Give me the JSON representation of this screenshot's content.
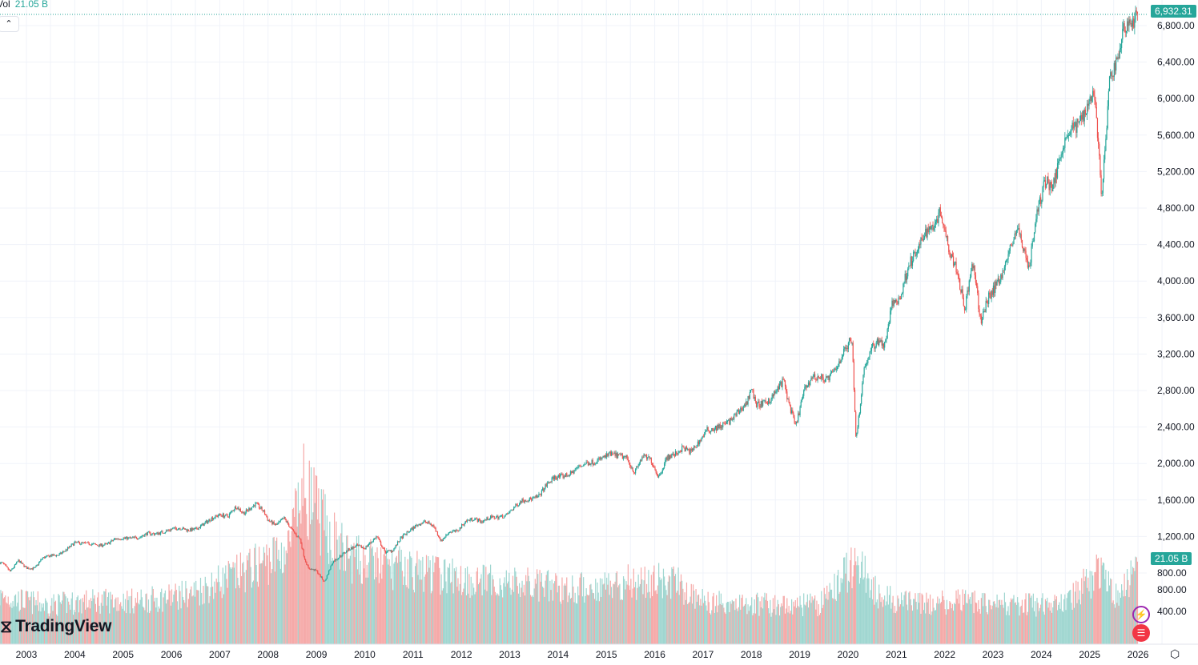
{
  "legend": {
    "label": "Vol",
    "value": "21.05 B"
  },
  "last_price_label": "6,932.31",
  "last_volume_label": "21.05 B",
  "brand": "TradingView",
  "icons": [
    "chevron-up-icon",
    "tradingview-logo-icon",
    "lightning-icon",
    "us-flag-icon",
    "settings-icon"
  ],
  "colors": {
    "up": "#26a69a",
    "down": "#ef5350",
    "up_volume": "#9fd6d0",
    "down_volume": "#f5a9a8",
    "grid": "#f0f3fa"
  },
  "chart_data": {
    "type": "candlestick",
    "title": "",
    "xlabel": "",
    "ylabel": "",
    "scale": "linear",
    "grid": true,
    "ylim": [
      600,
      7100
    ],
    "x_ticks": [
      "2003",
      "2004",
      "2005",
      "2006",
      "2007",
      "2008",
      "2009",
      "2010",
      "2011",
      "2012",
      "2013",
      "2014",
      "2015",
      "2016",
      "2017",
      "2018",
      "2019",
      "2020",
      "2021",
      "2022",
      "2023",
      "2024",
      "2025",
      "2026"
    ],
    "y_ticks": [
      "800.00",
      "1,200.00",
      "1,600.00",
      "2,000.00",
      "2,400.00",
      "2,800.00",
      "3,200.00",
      "3,600.00",
      "4,000.00",
      "4,400.00",
      "4,800.00",
      "5,200.00",
      "5,600.00",
      "6,000.00",
      "6,400.00",
      "6,800.00"
    ],
    "volume_ticks": [
      "400.00",
      "800.00"
    ],
    "price_closes": [
      [
        "2002-07",
        911
      ],
      [
        "2002-09",
        815
      ],
      [
        "2002-11",
        936
      ],
      [
        "2003-01",
        855
      ],
      [
        "2003-03",
        848
      ],
      [
        "2003-05",
        964
      ],
      [
        "2003-07",
        990
      ],
      [
        "2003-09",
        996
      ],
      [
        "2003-11",
        1058
      ],
      [
        "2004-01",
        1131
      ],
      [
        "2004-03",
        1126
      ],
      [
        "2004-05",
        1120
      ],
      [
        "2004-07",
        1101
      ],
      [
        "2004-09",
        1114
      ],
      [
        "2004-11",
        1173
      ],
      [
        "2005-01",
        1181
      ],
      [
        "2005-03",
        1180
      ],
      [
        "2005-05",
        1191
      ],
      [
        "2005-07",
        1234
      ],
      [
        "2005-09",
        1228
      ],
      [
        "2005-11",
        1249
      ],
      [
        "2006-01",
        1280
      ],
      [
        "2006-03",
        1294
      ],
      [
        "2006-05",
        1270
      ],
      [
        "2006-07",
        1276
      ],
      [
        "2006-09",
        1335
      ],
      [
        "2006-11",
        1400
      ],
      [
        "2007-01",
        1438
      ],
      [
        "2007-03",
        1420
      ],
      [
        "2007-05",
        1530
      ],
      [
        "2007-07",
        1455
      ],
      [
        "2007-10",
        1560
      ],
      [
        "2007-12",
        1468
      ],
      [
        "2008-01",
        1378
      ],
      [
        "2008-03",
        1322
      ],
      [
        "2008-05",
        1400
      ],
      [
        "2008-07",
        1267
      ],
      [
        "2008-09",
        1166
      ],
      [
        "2008-10",
        968
      ],
      [
        "2008-11",
        850
      ],
      [
        "2009-01",
        825
      ],
      [
        "2009-03",
        700
      ],
      [
        "2009-05",
        919
      ],
      [
        "2009-07",
        987
      ],
      [
        "2009-09",
        1057
      ],
      [
        "2009-11",
        1096
      ],
      [
        "2010-01",
        1073
      ],
      [
        "2010-04",
        1200
      ],
      [
        "2010-06",
        1030
      ],
      [
        "2010-08",
        1049
      ],
      [
        "2010-10",
        1183
      ],
      [
        "2010-12",
        1257
      ],
      [
        "2011-02",
        1327
      ],
      [
        "2011-04",
        1363
      ],
      [
        "2011-06",
        1320
      ],
      [
        "2011-08",
        1150
      ],
      [
        "2011-10",
        1253
      ],
      [
        "2011-12",
        1257
      ],
      [
        "2012-02",
        1365
      ],
      [
        "2012-04",
        1397
      ],
      [
        "2012-06",
        1362
      ],
      [
        "2012-08",
        1406
      ],
      [
        "2012-10",
        1412
      ],
      [
        "2012-12",
        1426
      ],
      [
        "2013-02",
        1514
      ],
      [
        "2013-04",
        1597
      ],
      [
        "2013-06",
        1606
      ],
      [
        "2013-08",
        1632
      ],
      [
        "2013-10",
        1756
      ],
      [
        "2013-12",
        1848
      ],
      [
        "2014-02",
        1859
      ],
      [
        "2014-04",
        1883
      ],
      [
        "2014-06",
        1960
      ],
      [
        "2014-08",
        2003
      ],
      [
        "2014-10",
        2018
      ],
      [
        "2014-12",
        2058
      ],
      [
        "2015-02",
        2104
      ],
      [
        "2015-04",
        2085
      ],
      [
        "2015-06",
        2063
      ],
      [
        "2015-08",
        1900
      ],
      [
        "2015-10",
        2079
      ],
      [
        "2015-12",
        2044
      ],
      [
        "2016-02",
        1850
      ],
      [
        "2016-04",
        2065
      ],
      [
        "2016-06",
        2099
      ],
      [
        "2016-08",
        2171
      ],
      [
        "2016-10",
        2126
      ],
      [
        "2016-12",
        2239
      ],
      [
        "2017-02",
        2364
      ],
      [
        "2017-04",
        2384
      ],
      [
        "2017-06",
        2423
      ],
      [
        "2017-08",
        2472
      ],
      [
        "2017-10",
        2575
      ],
      [
        "2017-12",
        2674
      ],
      [
        "2018-01",
        2850
      ],
      [
        "2018-02",
        2650
      ],
      [
        "2018-04",
        2648
      ],
      [
        "2018-06",
        2718
      ],
      [
        "2018-09",
        2914
      ],
      [
        "2018-10",
        2711
      ],
      [
        "2018-12",
        2400
      ],
      [
        "2019-02",
        2784
      ],
      [
        "2019-04",
        2946
      ],
      [
        "2019-06",
        2942
      ],
      [
        "2019-08",
        2926
      ],
      [
        "2019-10",
        3038
      ],
      [
        "2019-12",
        3231
      ],
      [
        "2020-02",
        3380
      ],
      [
        "2020-03",
        2250
      ],
      [
        "2020-05",
        3044
      ],
      [
        "2020-07",
        3271
      ],
      [
        "2020-09",
        3363
      ],
      [
        "2020-10",
        3270
      ],
      [
        "2020-12",
        3756
      ],
      [
        "2021-02",
        3811
      ],
      [
        "2021-04",
        4181
      ],
      [
        "2021-06",
        4298
      ],
      [
        "2021-08",
        4523
      ],
      [
        "2021-10",
        4605
      ],
      [
        "2021-12",
        4766
      ],
      [
        "2022-02",
        4374
      ],
      [
        "2022-04",
        4132
      ],
      [
        "2022-06",
        3700
      ],
      [
        "2022-08",
        4200
      ],
      [
        "2022-10",
        3550
      ],
      [
        "2022-12",
        3840
      ],
      [
        "2023-02",
        3970
      ],
      [
        "2023-04",
        4169
      ],
      [
        "2023-06",
        4450
      ],
      [
        "2023-07",
        4589
      ],
      [
        "2023-10",
        4150
      ],
      [
        "2023-12",
        4770
      ],
      [
        "2024-02",
        5096
      ],
      [
        "2024-04",
        5036
      ],
      [
        "2024-06",
        5460
      ],
      [
        "2024-08",
        5648
      ],
      [
        "2024-10",
        5705
      ],
      [
        "2024-12",
        5882
      ],
      [
        "2025-02",
        6100
      ],
      [
        "2025-03",
        5612
      ],
      [
        "2025-04",
        4900
      ],
      [
        "2025-06",
        6205
      ],
      [
        "2025-08",
        6460
      ],
      [
        "2025-10",
        6840
      ],
      [
        "2025-12",
        6845
      ],
      [
        "2026-01",
        6932.31
      ]
    ],
    "volume_billions": [
      [
        "2002-07",
        12
      ],
      [
        "2003-06",
        10
      ],
      [
        "2004-06",
        11
      ],
      [
        "2005-06",
        11
      ],
      [
        "2006-06",
        13
      ],
      [
        "2007-06",
        18
      ],
      [
        "2008-06",
        24
      ],
      [
        "2008-10",
        40
      ],
      [
        "2009-03",
        30
      ],
      [
        "2009-09",
        22
      ],
      [
        "2010-06",
        20
      ],
      [
        "2011-06",
        18
      ],
      [
        "2012-06",
        16
      ],
      [
        "2013-06",
        15
      ],
      [
        "2014-06",
        14
      ],
      [
        "2015-06",
        16
      ],
      [
        "2016-06",
        16
      ],
      [
        "2016-12",
        11
      ],
      [
        "2018-06",
        10
      ],
      [
        "2019-06",
        10
      ],
      [
        "2020-03",
        21
      ],
      [
        "2020-09",
        12
      ],
      [
        "2021-06",
        10
      ],
      [
        "2022-06",
        11
      ],
      [
        "2023-06",
        10
      ],
      [
        "2024-06",
        10
      ],
      [
        "2025-04",
        19
      ],
      [
        "2025-08",
        12
      ],
      [
        "2026-01",
        21.05
      ]
    ]
  }
}
